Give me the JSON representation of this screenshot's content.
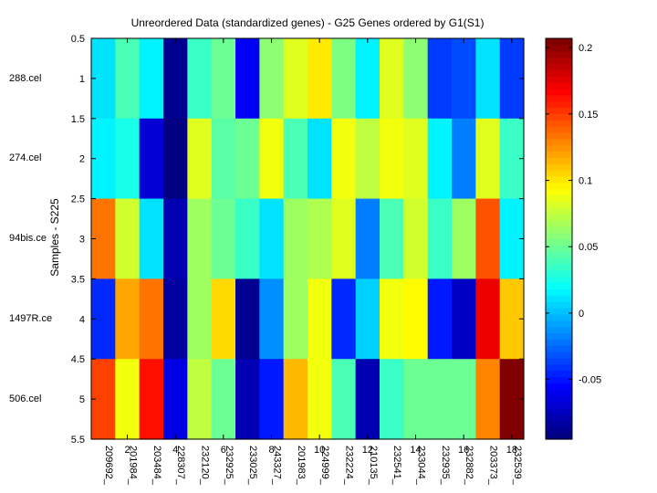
{
  "chart_data": {
    "type": "heatmap",
    "title": "Unreordered Data (standardized genes) - G25 Genes ordered by G1(S1)",
    "xlabel": "",
    "ylabel": "Samples - S225",
    "xlim": [
      0.5,
      18.5
    ],
    "ylim": [
      0.5,
      5.5
    ],
    "x_ticks": [
      2,
      4,
      6,
      8,
      10,
      12,
      14,
      16,
      18
    ],
    "y_ticks": [
      0.5,
      1,
      1.5,
      2,
      2.5,
      3,
      3.5,
      4,
      4.5,
      5,
      5.5
    ],
    "column_labels": [
      "209692_",
      "201984_",
      "203484_",
      "228307_",
      "232120_",
      "232925_",
      "233025_",
      "243327_",
      "201983_",
      "224999_",
      "232224_",
      "210135_",
      "232541_",
      "233044_",
      "232935_",
      "232882_",
      "203373_",
      "232539_"
    ],
    "row_labels": [
      "288.cel",
      "274.cel",
      "94bis.ce",
      "1497R.ce",
      "506.cel"
    ],
    "colorbar": {
      "colormap": "jet",
      "clim": [
        -0.095,
        0.207
      ],
      "ticks": [
        -0.05,
        0,
        0.05,
        0.1,
        0.15,
        0.2
      ],
      "tick_labels": [
        "-0.05",
        "0",
        "0.05",
        "0.1",
        "0.15",
        "0.2"
      ]
    },
    "values": [
      [
        0.01,
        0.04,
        0.015,
        -0.09,
        0.035,
        0.05,
        -0.06,
        0.06,
        0.085,
        0.1,
        0.055,
        0.015,
        0.085,
        0.06,
        -0.04,
        -0.035,
        0.01,
        -0.04
      ],
      [
        0.015,
        0.025,
        -0.07,
        -0.095,
        0.085,
        0.045,
        0.05,
        0.09,
        0.04,
        0.01,
        0.09,
        0.075,
        0.09,
        0.085,
        0.015,
        -0.02,
        0.085,
        0.035
      ],
      [
        0.135,
        0.08,
        0.01,
        -0.08,
        0.065,
        0.05,
        0.035,
        0.01,
        0.065,
        0.07,
        0.085,
        -0.02,
        0.04,
        0.08,
        0.035,
        0.065,
        0.145,
        0.015
      ],
      [
        -0.045,
        0.12,
        0.135,
        -0.085,
        0.065,
        0.105,
        -0.09,
        -0.015,
        0.065,
        0.09,
        -0.045,
        0.005,
        0.09,
        0.095,
        -0.05,
        -0.075,
        0.175,
        0.11
      ],
      [
        0.15,
        0.09,
        0.165,
        -0.065,
        0.075,
        0.05,
        -0.08,
        -0.05,
        0.115,
        0.09,
        0.04,
        -0.08,
        0.035,
        0.05,
        0.05,
        0.05,
        0.13,
        0.207
      ]
    ]
  }
}
